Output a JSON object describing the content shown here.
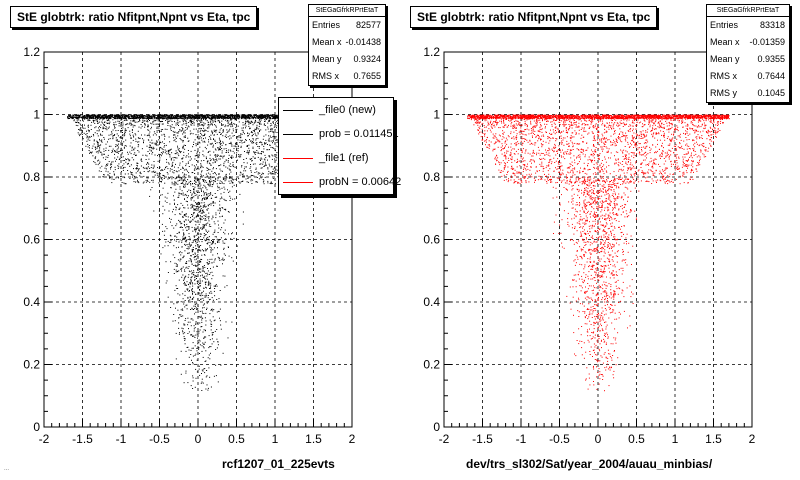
{
  "corner_note": "...",
  "chart_data": [
    {
      "type": "scatter",
      "title": "StE globtrk: ratio Nfitpnt,Npnt vs Eta, tpc",
      "xlabel": "rcf1207_01_225evts",
      "ylabel": "",
      "xlim": [
        -2,
        2
      ],
      "ylim": [
        0,
        1.2
      ],
      "xticks": [
        "-2",
        "-1.5",
        "-1",
        "-0.5",
        "0",
        "0.5",
        "1",
        "1.5",
        "2"
      ],
      "yticks": [
        "0",
        "0.2",
        "0.4",
        "0.6",
        "0.8",
        "1",
        "1.2"
      ],
      "grid": true,
      "point_color": "#000000",
      "stats": {
        "name": "StEGaGfrkRPrtEtaT",
        "entries_label": "Entries",
        "entries": "82577",
        "meanx_label": "Mean x",
        "meanx": "-0.01438",
        "meany_label": "Mean y",
        "meany": "0.9324",
        "rmsx_label": "RMS x",
        "rmsx": "0.7655"
      },
      "legend": {
        "position": "top-right",
        "entries": [
          {
            "label": "_file0 (new)",
            "color": "#000000"
          },
          {
            "label": "prob = 0.011451",
            "color": "#000000"
          },
          {
            "label": "_file1 (ref)",
            "color": "#ff0000"
          },
          {
            "label": "probN = 0.00642",
            "color": "#ff0000"
          }
        ]
      }
    },
    {
      "type": "scatter",
      "title": "StE globtrk: ratio Nfitpnt,Npnt vs Eta, tpc",
      "xlabel": "dev/trs_sl302/Sat/year_2004/auau_minbias/",
      "ylabel": "",
      "xlim": [
        -2,
        2
      ],
      "ylim": [
        0,
        1.2
      ],
      "xticks": [
        "-2",
        "-1.5",
        "-1",
        "-0.5",
        "0",
        "0.5",
        "1",
        "1.5",
        "2"
      ],
      "yticks": [
        "0",
        "0.2",
        "0.4",
        "0.6",
        "0.8",
        "1",
        "1.2"
      ],
      "grid": true,
      "point_color": "#ff0000",
      "stats": {
        "name": "StEGaGfrkRPrtEtaT",
        "entries_label": "Entries",
        "entries": "83318",
        "meanx_label": "Mean x",
        "meanx": "-0.01359",
        "meany_label": "Mean y",
        "meany": "0.9355",
        "rmsx_label": "RMS x",
        "rmsx": "0.7644",
        "rmsy_label": "RMS y",
        "rmsy": "0.1045"
      }
    }
  ]
}
